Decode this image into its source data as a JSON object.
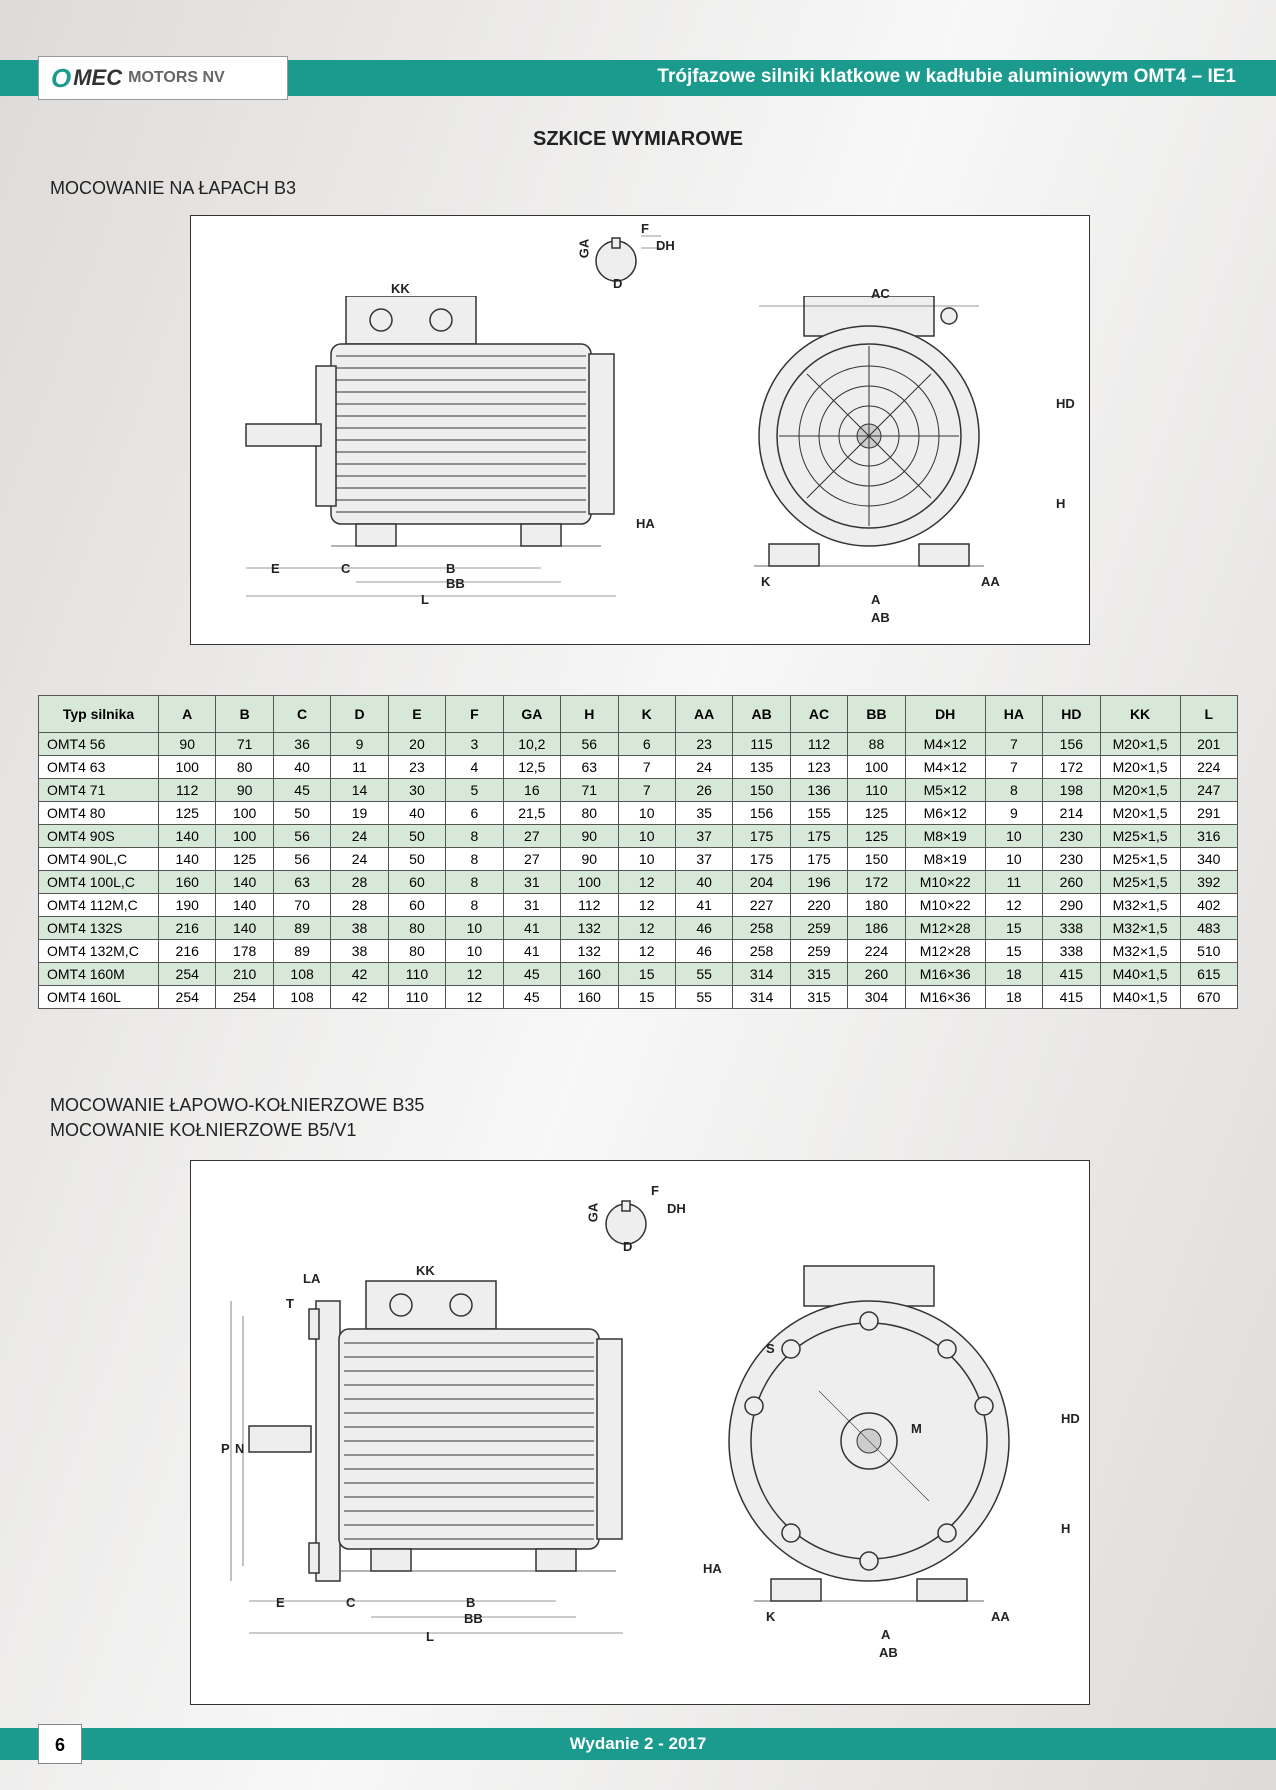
{
  "brand": {
    "o": "O",
    "name": "MEC",
    "suffix": "MOTORS NV"
  },
  "header_title": "Trójfazowe silniki klatkowe w kadłubie aluminiowym OMT4 – IE1",
  "section_title": "SZKICE WYMIAROWE",
  "subtitle1": "MOCOWANIE NA ŁAPACH B3",
  "subtitle2a": "MOCOWANIE ŁAPOWO-KOŁNIERZOWE B35",
  "subtitle2b": "MOCOWANIE KOŁNIERZOWE B5/V1",
  "footer": "Wydanie 2 - 2017",
  "page_num": "6",
  "colors": {
    "accent": "#1a9b8e",
    "header_shade": "#d8e8d8",
    "border": "#555555",
    "bg": "#ffffff"
  },
  "diagram_labels_b3": {
    "side": [
      "KK",
      "E",
      "C",
      "B",
      "BB",
      "L",
      "HA",
      "GA",
      "F",
      "DH",
      "D"
    ],
    "front": [
      "AC",
      "HD",
      "H",
      "K",
      "A",
      "AA",
      "AB"
    ]
  },
  "diagram_labels_b35": {
    "side": [
      "LA",
      "T",
      "KK",
      "P",
      "N",
      "E",
      "C",
      "B",
      "BB",
      "L",
      "GA",
      "F",
      "DH",
      "D"
    ],
    "front": [
      "S",
      "M",
      "HD",
      "H",
      "HA",
      "K",
      "A",
      "AA",
      "AB"
    ]
  },
  "table": {
    "columns": [
      "Typ silnika",
      "A",
      "B",
      "C",
      "D",
      "E",
      "F",
      "GA",
      "H",
      "K",
      "AA",
      "AB",
      "AC",
      "BB",
      "DH",
      "HA",
      "HD",
      "KK",
      "L"
    ],
    "rows": [
      {
        "shade": true,
        "cells": [
          "OMT4  56",
          "90",
          "71",
          "36",
          "9",
          "20",
          "3",
          "10,2",
          "56",
          "6",
          "23",
          "115",
          "112",
          "88",
          "M4×12",
          "7",
          "156",
          "M20×1,5",
          "201"
        ]
      },
      {
        "shade": false,
        "cells": [
          "OMT4  63",
          "100",
          "80",
          "40",
          "11",
          "23",
          "4",
          "12,5",
          "63",
          "7",
          "24",
          "135",
          "123",
          "100",
          "M4×12",
          "7",
          "172",
          "M20×1,5",
          "224"
        ]
      },
      {
        "shade": true,
        "cells": [
          "OMT4  71",
          "112",
          "90",
          "45",
          "14",
          "30",
          "5",
          "16",
          "71",
          "7",
          "26",
          "150",
          "136",
          "110",
          "M5×12",
          "8",
          "198",
          "M20×1,5",
          "247"
        ]
      },
      {
        "shade": false,
        "cells": [
          "OMT4  80",
          "125",
          "100",
          "50",
          "19",
          "40",
          "6",
          "21,5",
          "80",
          "10",
          "35",
          "156",
          "155",
          "125",
          "M6×12",
          "9",
          "214",
          "M20×1,5",
          "291"
        ]
      },
      {
        "shade": true,
        "cells": [
          "OMT4  90S",
          "140",
          "100",
          "56",
          "24",
          "50",
          "8",
          "27",
          "90",
          "10",
          "37",
          "175",
          "175",
          "125",
          "M8×19",
          "10",
          "230",
          "M25×1,5",
          "316"
        ]
      },
      {
        "shade": false,
        "cells": [
          "OMT4  90L,C",
          "140",
          "125",
          "56",
          "24",
          "50",
          "8",
          "27",
          "90",
          "10",
          "37",
          "175",
          "175",
          "150",
          "M8×19",
          "10",
          "230",
          "M25×1,5",
          "340"
        ]
      },
      {
        "shade": true,
        "cells": [
          "OMT4  100L,C",
          "160",
          "140",
          "63",
          "28",
          "60",
          "8",
          "31",
          "100",
          "12",
          "40",
          "204",
          "196",
          "172",
          "M10×22",
          "11",
          "260",
          "M25×1,5",
          "392"
        ]
      },
      {
        "shade": false,
        "cells": [
          "OMT4  112M,C",
          "190",
          "140",
          "70",
          "28",
          "60",
          "8",
          "31",
          "112",
          "12",
          "41",
          "227",
          "220",
          "180",
          "M10×22",
          "12",
          "290",
          "M32×1,5",
          "402"
        ]
      },
      {
        "shade": true,
        "cells": [
          "OMT4  132S",
          "216",
          "140",
          "89",
          "38",
          "80",
          "10",
          "41",
          "132",
          "12",
          "46",
          "258",
          "259",
          "186",
          "M12×28",
          "15",
          "338",
          "M32×1,5",
          "483"
        ]
      },
      {
        "shade": false,
        "cells": [
          "OMT4  132M,C",
          "216",
          "178",
          "89",
          "38",
          "80",
          "10",
          "41",
          "132",
          "12",
          "46",
          "258",
          "259",
          "224",
          "M12×28",
          "15",
          "338",
          "M32×1,5",
          "510"
        ]
      },
      {
        "shade": true,
        "cells": [
          "OMT4  160M",
          "254",
          "210",
          "108",
          "42",
          "110",
          "12",
          "45",
          "160",
          "15",
          "55",
          "314",
          "315",
          "260",
          "M16×36",
          "18",
          "415",
          "M40×1,5",
          "615"
        ]
      },
      {
        "shade": false,
        "cells": [
          "OMT4  160L",
          "254",
          "254",
          "108",
          "42",
          "110",
          "12",
          "45",
          "160",
          "15",
          "55",
          "314",
          "315",
          "304",
          "M16×36",
          "18",
          "415",
          "M40×1,5",
          "670"
        ]
      }
    ]
  }
}
